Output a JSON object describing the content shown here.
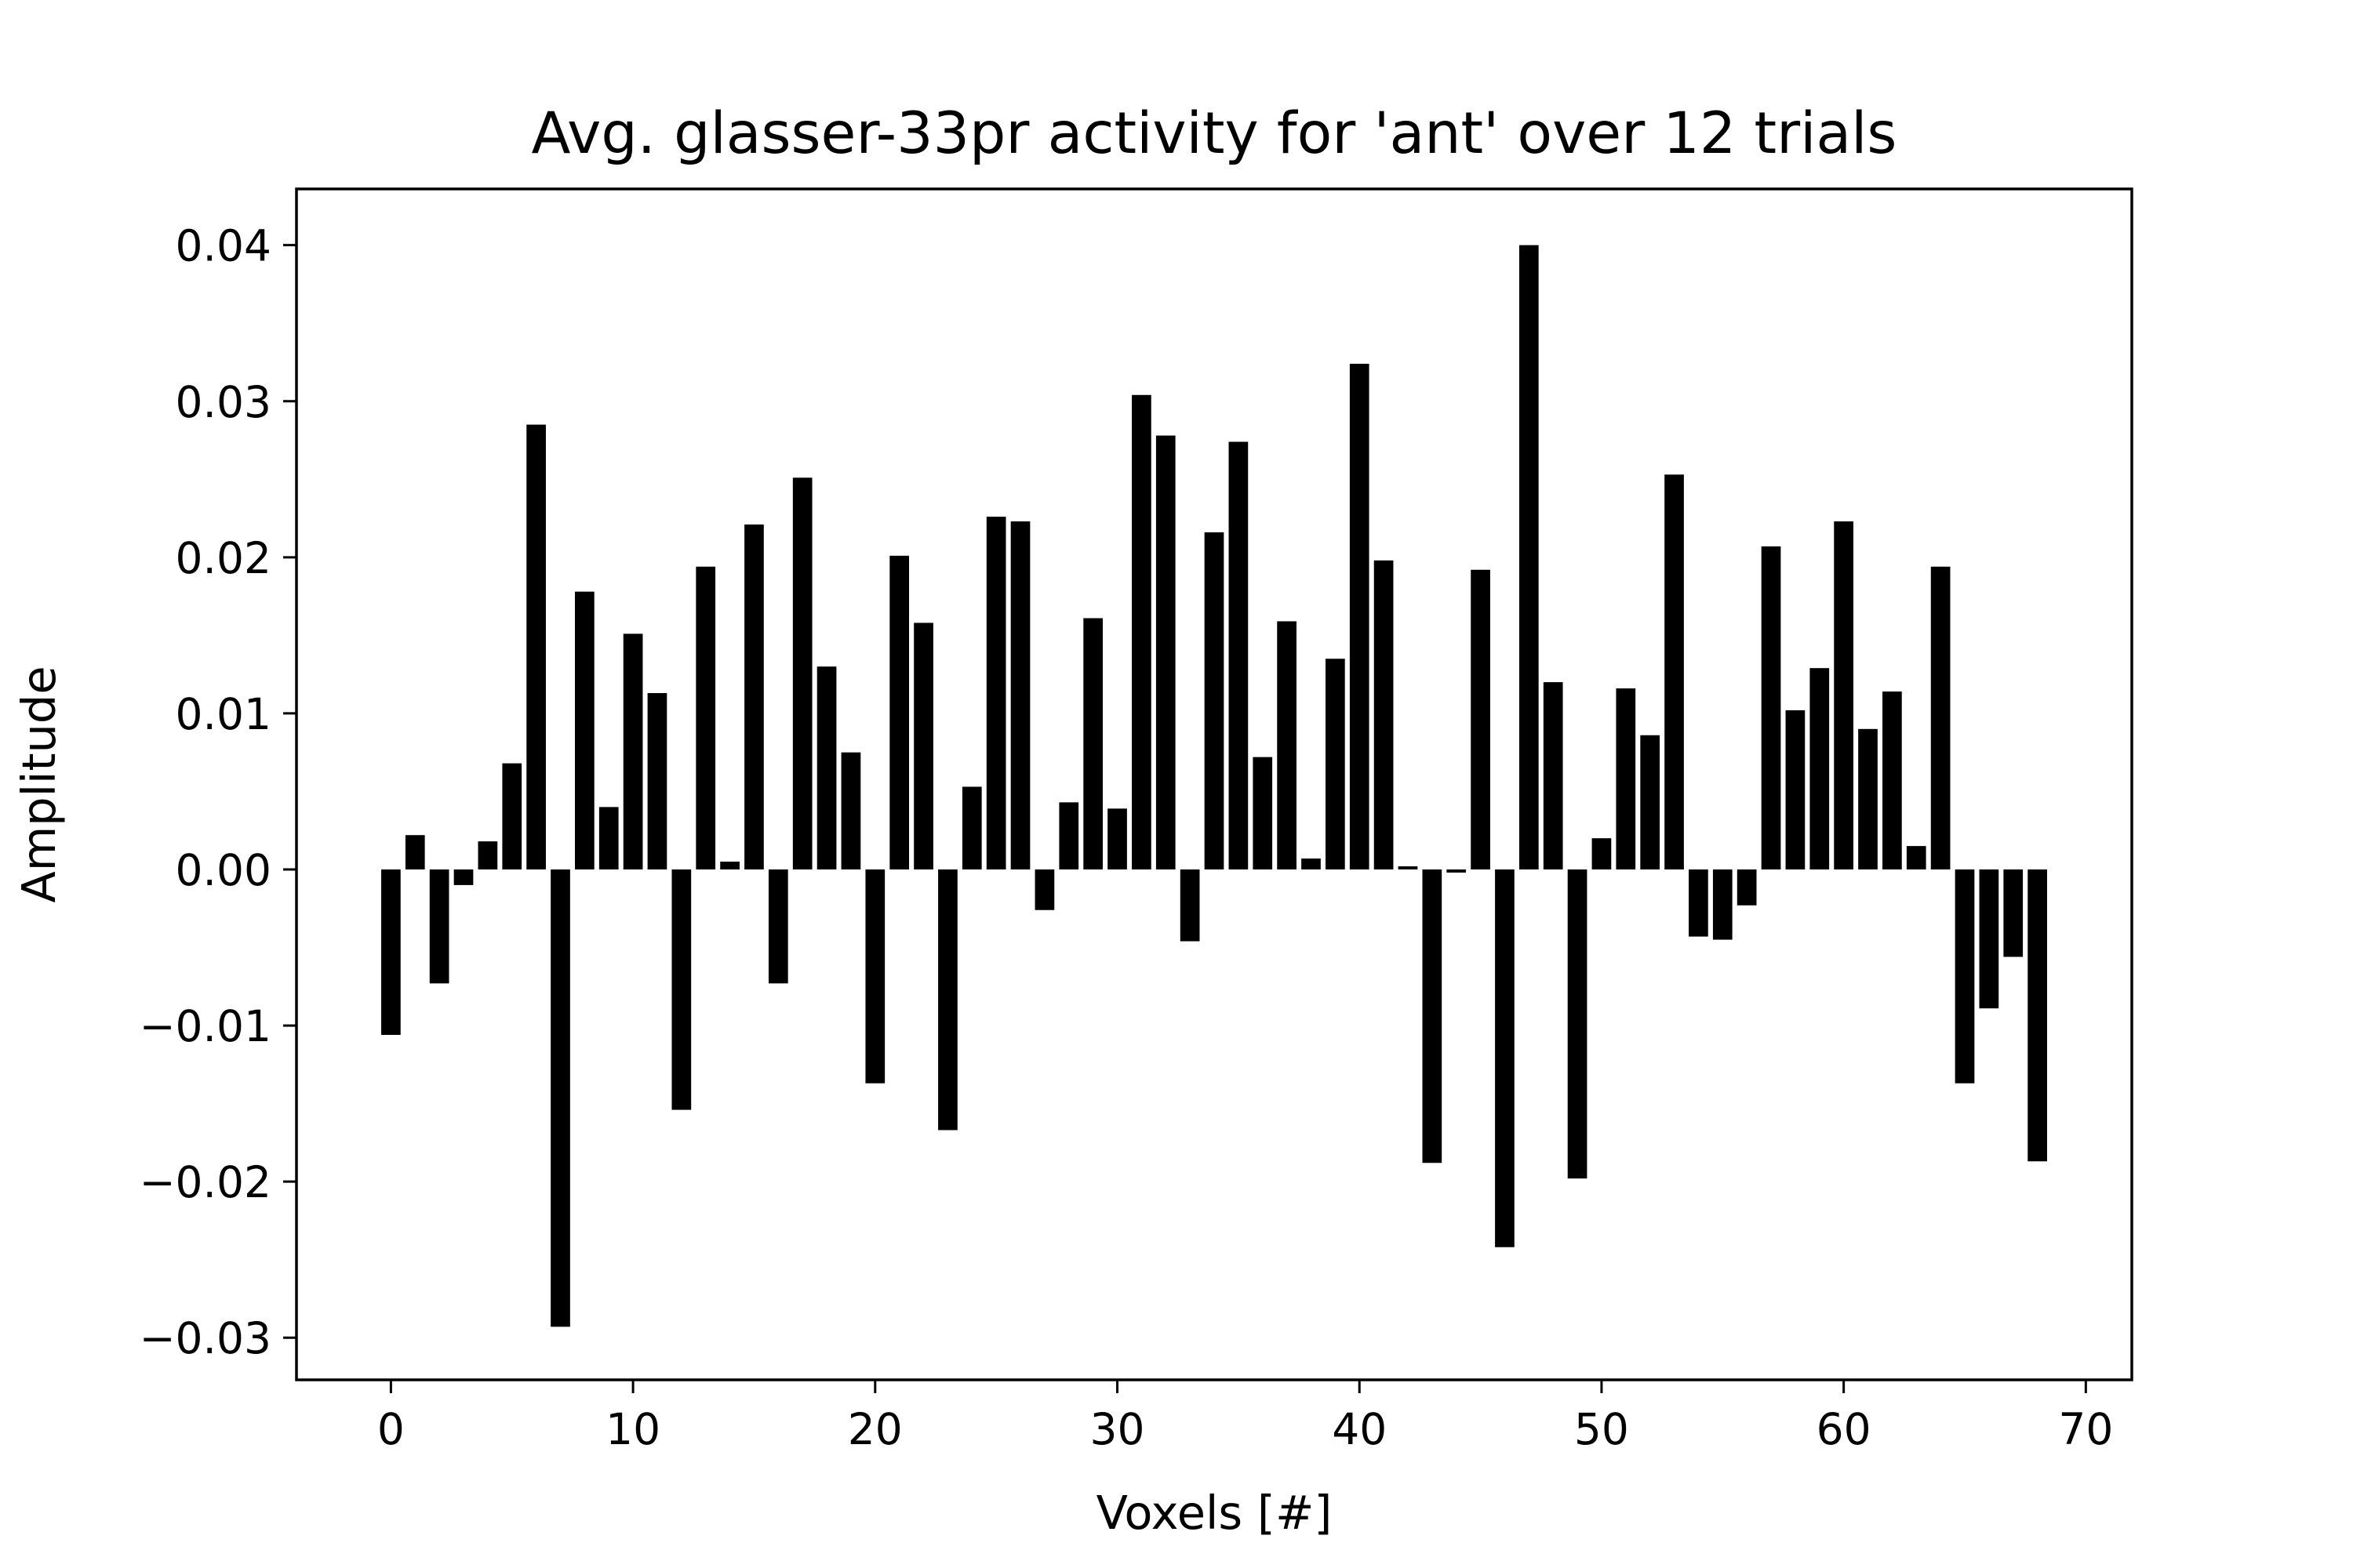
{
  "chart_data": {
    "type": "bar",
    "title": "Avg. glasser-33pr activity for 'ant' over 12 trials",
    "xlabel": "Voxels [#]",
    "ylabel": "Amplitude",
    "xlim": [
      -3.9,
      71.9
    ],
    "ylim": [
      -0.0327,
      0.0436
    ],
    "xticks": [
      0,
      10,
      20,
      30,
      40,
      50,
      60,
      70
    ],
    "xtick_labels": [
      "0",
      "10",
      "20",
      "30",
      "40",
      "50",
      "60",
      "70"
    ],
    "yticks": [
      -0.03,
      -0.02,
      -0.01,
      0.0,
      0.01,
      0.02,
      0.03,
      0.04
    ],
    "ytick_labels": [
      "−0.03",
      "−0.02",
      "−0.01",
      "0.00",
      "0.01",
      "0.02",
      "0.03",
      "0.04"
    ],
    "grid": false,
    "bar_color": "#000000",
    "x": [
      0,
      1,
      2,
      3,
      4,
      5,
      6,
      7,
      8,
      9,
      10,
      11,
      12,
      13,
      14,
      15,
      16,
      17,
      18,
      19,
      20,
      21,
      22,
      23,
      24,
      25,
      26,
      27,
      28,
      29,
      30,
      31,
      32,
      33,
      34,
      35,
      36,
      37,
      38,
      39,
      40,
      41,
      42,
      43,
      44,
      45,
      46,
      47,
      48,
      49,
      50,
      51,
      52,
      53,
      54,
      55,
      56,
      57,
      58,
      59,
      60,
      61,
      62,
      63,
      64,
      65,
      66,
      67,
      68
    ],
    "values": [
      -0.0106,
      0.0022,
      -0.0073,
      -0.001,
      0.0018,
      0.0068,
      0.0285,
      -0.0293,
      0.0178,
      0.004,
      0.0151,
      0.0113,
      -0.0154,
      0.0194,
      0.0005,
      0.0221,
      -0.0073,
      0.0251,
      0.013,
      0.0075,
      -0.0137,
      0.0201,
      0.0158,
      -0.0167,
      0.0053,
      0.0226,
      0.0223,
      -0.0026,
      0.0043,
      0.0161,
      0.0039,
      0.0304,
      0.0278,
      -0.0046,
      0.0216,
      0.0274,
      0.0072,
      0.0159,
      0.0007,
      0.0135,
      0.0324,
      0.0198,
      0.0002,
      -0.0188,
      -0.0002,
      0.0192,
      -0.0242,
      0.04,
      0.012,
      -0.0198,
      0.002,
      0.0116,
      0.0086,
      0.0253,
      -0.0043,
      -0.0045,
      -0.0023,
      0.0207,
      0.0102,
      0.0129,
      0.0223,
      0.009,
      0.0114,
      0.0015,
      0.0194,
      -0.0137,
      -0.0089,
      -0.0056,
      -0.0187
    ]
  }
}
